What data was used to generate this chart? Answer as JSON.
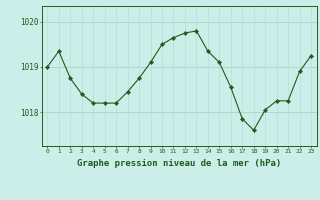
{
  "hours": [
    0,
    1,
    2,
    3,
    4,
    5,
    6,
    7,
    8,
    9,
    10,
    11,
    12,
    13,
    14,
    15,
    16,
    17,
    18,
    19,
    20,
    21,
    22,
    23
  ],
  "pressure": [
    1019.0,
    1019.35,
    1018.75,
    1018.4,
    1018.2,
    1018.2,
    1018.2,
    1018.45,
    1018.75,
    1019.1,
    1019.5,
    1019.65,
    1019.75,
    1019.8,
    1019.35,
    1019.1,
    1018.55,
    1017.85,
    1017.6,
    1018.05,
    1018.25,
    1018.25,
    1018.9,
    1019.25
  ],
  "line_color": "#1e5c1e",
  "marker": "D",
  "marker_size": 2.2,
  "bg_color": "#cceee8",
  "grid_color_h": "#a8d4cc",
  "grid_color_v": "#b8dcd6",
  "xlabel": "Graphe pression niveau de la mer (hPa)",
  "xlabel_fontsize": 6.5,
  "ytick_labels": [
    "1018",
    "1019",
    "1020"
  ],
  "ytick_values": [
    1018.0,
    1019.0,
    1020.0
  ],
  "ylim": [
    1017.25,
    1020.35
  ],
  "xlim": [
    -0.5,
    23.5
  ],
  "spine_color": "#1e5c1e",
  "tick_color": "#1e5c1e",
  "label_color": "#1e5c1e",
  "xtick_fontsize": 4.5,
  "ytick_fontsize": 5.5
}
